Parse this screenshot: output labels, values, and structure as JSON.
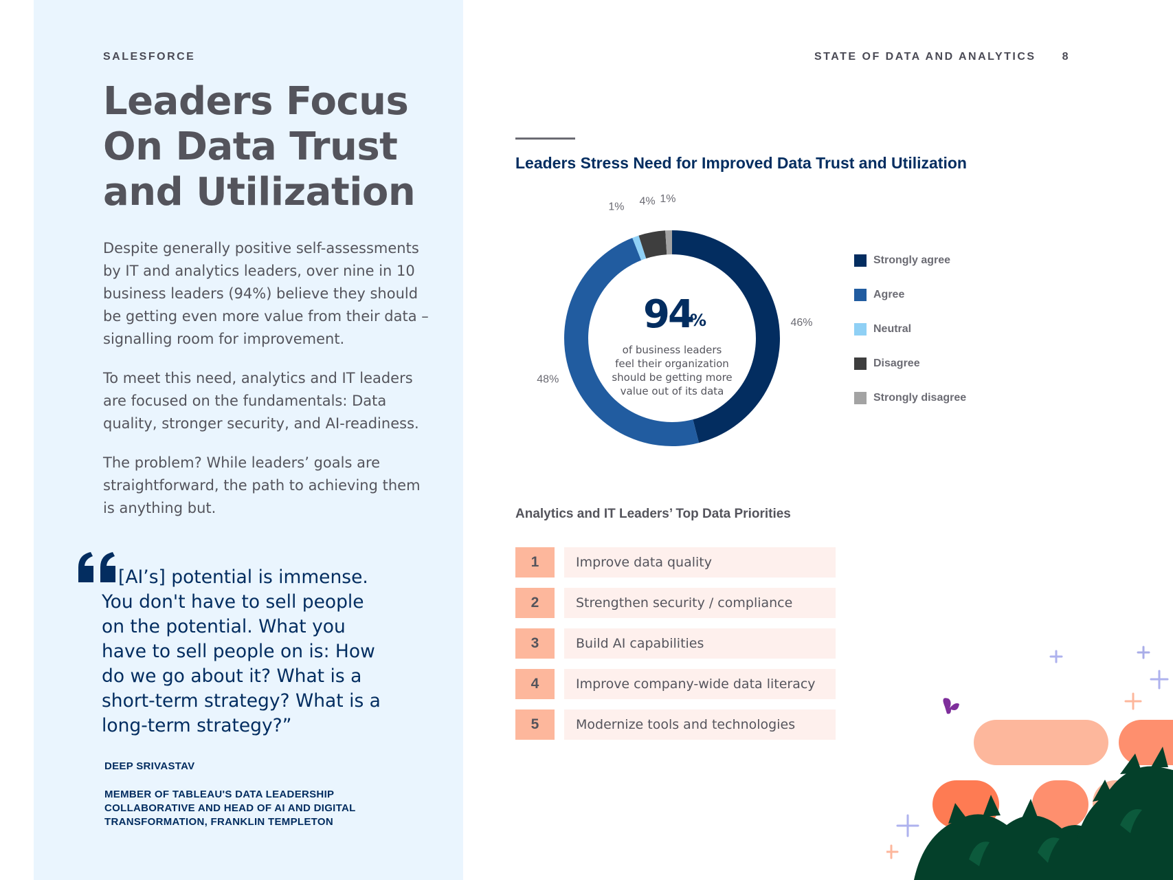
{
  "header": {
    "brand": "SALESFORCE",
    "report_title": "STATE OF DATA AND ANALYTICS",
    "page_number": "8"
  },
  "left": {
    "title": "Leaders Focus On Data Trust and Utilization",
    "paragraphs": [
      "Despite generally positive self-assessments by IT and analytics leaders, over nine in 10 business leaders (94%) believe they should be getting even more value from their data – signalling room for improvement.",
      "To meet this need, analytics and IT leaders are focused on the fundamentals: Data quality, stronger security, and AI-readiness.",
      "The problem? While leaders’ goals are straightforward, the path to achieving them is anything but."
    ],
    "quote": {
      "lines": [
        "[AI’s] potential is immense.",
        "You don't have to sell people",
        "on the potential. What you",
        "have to sell people on is: How",
        "do we go about it? What is a",
        "short-term strategy? What is a",
        "long-term strategy?”"
      ],
      "author": "DEEP SRIVASTAV",
      "role_lines": [
        "MEMBER OF TABLEAU'S DATA LEADERSHIP",
        "COLLABORATIVE AND HEAD OF AI AND DIGITAL",
        "TRANSFORMATION, FRANKLIN TEMPLETON"
      ]
    }
  },
  "chart_data": {
    "type": "pie",
    "title": "Leaders Stress Need for Improved Data Trust and Utilization",
    "center_value": "94",
    "center_unit": "%",
    "center_caption_lines": [
      "of business leaders",
      "feel their organization",
      "should be getting more",
      "value out of its data"
    ],
    "slices": [
      {
        "name": "Strongly agree",
        "value": 46,
        "label": "46%",
        "color": "#032d60"
      },
      {
        "name": "Agree",
        "value": 48,
        "label": "48%",
        "color": "#215ca0"
      },
      {
        "name": "Neutral",
        "value": 1,
        "label": "1%",
        "color": "#8fd0f5"
      },
      {
        "name": "Disagree",
        "value": 4,
        "label": "4%",
        "color": "#3e3e3e"
      },
      {
        "name": "Strongly disagree",
        "value": 1,
        "label": "1%",
        "color": "#a3a3a3"
      }
    ],
    "legend_position": "right"
  },
  "priorities": {
    "title": "Analytics and IT Leaders’ Top Data Priorities",
    "items": [
      {
        "rank": "1",
        "label": "Improve data quality"
      },
      {
        "rank": "2",
        "label": "Strengthen security / compliance"
      },
      {
        "rank": "3",
        "label": "Build AI capabilities"
      },
      {
        "rank": "4",
        "label": "Improve company-wide data literacy"
      },
      {
        "rank": "5",
        "label": "Modernize tools and technologies"
      }
    ]
  },
  "colors": {
    "panel_background": "#eaf5fe",
    "navy": "#032d60",
    "rank_badge": "#fdb79c",
    "rank_row": "#fef0ed"
  },
  "decoration": "illustration-plants-butterfly"
}
